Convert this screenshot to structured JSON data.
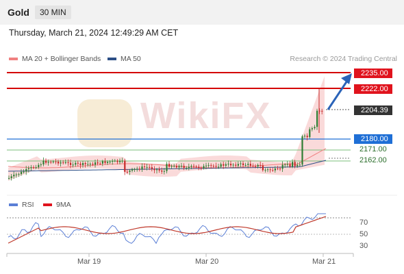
{
  "header": {
    "symbol": "Gold",
    "timeframe": "30 MIN"
  },
  "timestamp": "Thursday, March 21, 2024 12:49:29 AM CET",
  "legend": [
    {
      "label": "MA 20 + Bollinger Bands",
      "color": "#f08080"
    },
    {
      "label": "MA 50",
      "color": "#2c4f86"
    }
  ],
  "credit": "Research © 2024 Trading Central",
  "watermark": "WikiFX",
  "levels": {
    "r2": "2235.00",
    "r1": "2222.00",
    "last": "2204.39",
    "pivot": "2180.00",
    "s1": "2171.00",
    "s2": "2162.00"
  },
  "rsi_legend": [
    {
      "label": "RSI",
      "color": "#5b7fd6"
    },
    {
      "label": "9MA",
      "color": "#e0131d"
    }
  ],
  "rsi_levels": [
    "70",
    "50",
    "30"
  ],
  "x_axis": [
    "Mar 19",
    "Mar 20",
    "Mar 21"
  ],
  "colors": {
    "up": "#2e7d32",
    "down": "#c62828",
    "resistance": "#d40000",
    "pivot": "#1f6fd6",
    "support": "#2a8a2a",
    "arrow": "#2a63b8"
  }
}
